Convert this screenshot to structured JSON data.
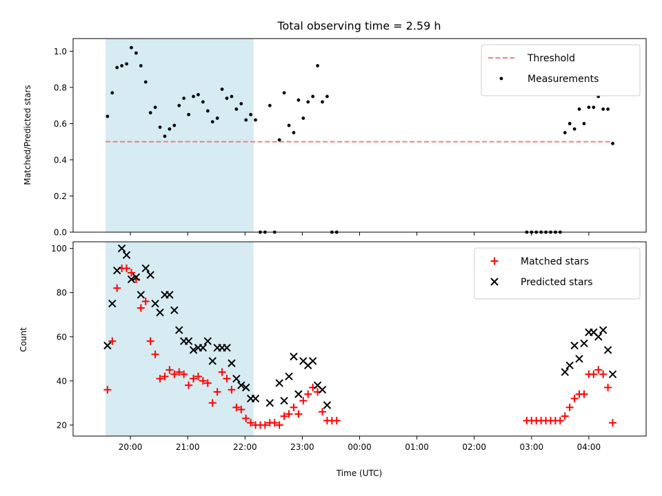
{
  "chart_data": [
    {
      "type": "scatter",
      "title": "Total observing time = 2.59 h",
      "ylabel": "Matched/Predicted stars",
      "xlabel": "",
      "ylim": [
        0,
        1.07
      ],
      "yticks": [
        0.0,
        0.2,
        0.4,
        0.6,
        0.8,
        1.0
      ],
      "ytick_labels": [
        "0.0",
        "0.2",
        "0.4",
        "0.6",
        "0.8",
        "1.0"
      ],
      "grid": false,
      "legend": "top-right",
      "shaded_span": {
        "start": "19:34",
        "end": "22:09",
        "color": "#add8e6"
      },
      "threshold": {
        "name": "Threshold",
        "value": 0.5,
        "start": "19:34",
        "end": "04:25",
        "color": "#f08080"
      },
      "series": [
        {
          "name": "Measurements",
          "color": "#000000",
          "marker": "dot",
          "points": [
            [
              "19:36",
              0.64
            ],
            [
              "19:41",
              0.77
            ],
            [
              "19:46",
              0.91
            ],
            [
              "19:51",
              0.92
            ],
            [
              "19:56",
              0.93
            ],
            [
              "20:01",
              1.02
            ],
            [
              "20:06",
              0.99
            ],
            [
              "20:11",
              0.92
            ],
            [
              "20:16",
              0.83
            ],
            [
              "20:21",
              0.66
            ],
            [
              "20:26",
              0.69
            ],
            [
              "20:31",
              0.58
            ],
            [
              "20:36",
              0.53
            ],
            [
              "20:41",
              0.57
            ],
            [
              "20:46",
              0.59
            ],
            [
              "20:51",
              0.7
            ],
            [
              "20:56",
              0.74
            ],
            [
              "21:01",
              0.65
            ],
            [
              "21:06",
              0.75
            ],
            [
              "21:11",
              0.76
            ],
            [
              "21:16",
              0.72
            ],
            [
              "21:21",
              0.67
            ],
            [
              "21:26",
              0.61
            ],
            [
              "21:31",
              0.63
            ],
            [
              "21:36",
              0.79
            ],
            [
              "21:41",
              0.74
            ],
            [
              "21:46",
              0.75
            ],
            [
              "21:51",
              0.68
            ],
            [
              "21:56",
              0.71
            ],
            [
              "22:01",
              0.62
            ],
            [
              "22:06",
              0.65
            ],
            [
              "22:11",
              0.62
            ],
            [
              "22:16",
              0.0
            ],
            [
              "22:21",
              0.0
            ],
            [
              "22:26",
              0.7
            ],
            [
              "22:31",
              0.0
            ],
            [
              "22:36",
              0.51
            ],
            [
              "22:41",
              0.77
            ],
            [
              "22:46",
              0.59
            ],
            [
              "22:51",
              0.55
            ],
            [
              "22:56",
              0.73
            ],
            [
              "23:01",
              0.63
            ],
            [
              "23:06",
              0.72
            ],
            [
              "23:11",
              0.75
            ],
            [
              "23:16",
              0.92
            ],
            [
              "23:21",
              0.72
            ],
            [
              "23:26",
              0.75
            ],
            [
              "23:31",
              0.0
            ],
            [
              "23:36",
              0.0
            ],
            [
              "02:55",
              0.0
            ],
            [
              "03:00",
              0.0
            ],
            [
              "03:05",
              0.0
            ],
            [
              "03:10",
              0.0
            ],
            [
              "03:15",
              0.0
            ],
            [
              "03:20",
              0.0
            ],
            [
              "03:25",
              0.0
            ],
            [
              "03:30",
              0.0
            ],
            [
              "03:35",
              0.55
            ],
            [
              "03:40",
              0.6
            ],
            [
              "03:45",
              0.57
            ],
            [
              "03:50",
              0.68
            ],
            [
              "03:55",
              0.6
            ],
            [
              "04:00",
              0.69
            ],
            [
              "04:05",
              0.69
            ],
            [
              "04:10",
              0.75
            ],
            [
              "04:15",
              0.68
            ],
            [
              "04:20",
              0.68
            ],
            [
              "04:25",
              0.49
            ]
          ]
        }
      ]
    },
    {
      "type": "scatter",
      "title": "",
      "ylabel": "Count",
      "xlabel": "Time (UTC)",
      "ylim": [
        15,
        103
      ],
      "yticks": [
        20,
        40,
        60,
        80,
        100
      ],
      "ytick_labels": [
        "20",
        "40",
        "60",
        "80",
        "100"
      ],
      "x_range": [
        "19:00",
        "05:00"
      ],
      "xticks": [
        "20:00",
        "21:00",
        "22:00",
        "23:00",
        "00:00",
        "01:00",
        "02:00",
        "03:00",
        "04:00"
      ],
      "xtick_labels": [
        "20:00",
        "21:00",
        "22:00",
        "23:00",
        "00:00",
        "01:00",
        "02:00",
        "03:00",
        "04:00"
      ],
      "grid": false,
      "legend": "top-right",
      "shaded_span": {
        "start": "19:34",
        "end": "22:09",
        "color": "#add8e6"
      },
      "series": [
        {
          "name": "Matched stars",
          "color": "#ff0000",
          "marker": "plus",
          "points": [
            [
              "19:36",
              36
            ],
            [
              "19:41",
              58
            ],
            [
              "19:46",
              82
            ],
            [
              "19:51",
              91
            ],
            [
              "19:56",
              91
            ],
            [
              "20:01",
              89
            ],
            [
              "20:06",
              86
            ],
            [
              "20:11",
              73
            ],
            [
              "20:16",
              76
            ],
            [
              "20:21",
              58
            ],
            [
              "20:26",
              52
            ],
            [
              "20:31",
              41
            ],
            [
              "20:36",
              42
            ],
            [
              "20:41",
              45
            ],
            [
              "20:46",
              43
            ],
            [
              "20:51",
              44
            ],
            [
              "20:56",
              43
            ],
            [
              "21:01",
              38
            ],
            [
              "21:06",
              41
            ],
            [
              "21:11",
              42
            ],
            [
              "21:16",
              40
            ],
            [
              "21:21",
              39
            ],
            [
              "21:26",
              30
            ],
            [
              "21:31",
              35
            ],
            [
              "21:36",
              44
            ],
            [
              "21:41",
              41
            ],
            [
              "21:46",
              36
            ],
            [
              "21:51",
              28
            ],
            [
              "21:56",
              27
            ],
            [
              "22:01",
              23
            ],
            [
              "22:06",
              21
            ],
            [
              "22:11",
              20
            ],
            [
              "22:16",
              20
            ],
            [
              "22:21",
              20
            ],
            [
              "22:26",
              21
            ],
            [
              "22:31",
              21
            ],
            [
              "22:36",
              20
            ],
            [
              "22:41",
              24
            ],
            [
              "22:46",
              25
            ],
            [
              "22:51",
              28
            ],
            [
              "22:56",
              25
            ],
            [
              "23:01",
              31
            ],
            [
              "23:06",
              34
            ],
            [
              "23:11",
              37
            ],
            [
              "23:16",
              35
            ],
            [
              "23:21",
              26
            ],
            [
              "23:26",
              22
            ],
            [
              "23:31",
              22
            ],
            [
              "23:36",
              22
            ],
            [
              "02:55",
              22
            ],
            [
              "03:00",
              22
            ],
            [
              "03:05",
              22
            ],
            [
              "03:10",
              22
            ],
            [
              "03:15",
              22
            ],
            [
              "03:20",
              22
            ],
            [
              "03:25",
              22
            ],
            [
              "03:30",
              22
            ],
            [
              "03:35",
              24
            ],
            [
              "03:40",
              28
            ],
            [
              "03:45",
              32
            ],
            [
              "03:50",
              34
            ],
            [
              "03:55",
              34
            ],
            [
              "04:00",
              43
            ],
            [
              "04:05",
              43
            ],
            [
              "04:10",
              45
            ],
            [
              "04:15",
              43
            ],
            [
              "04:20",
              37
            ],
            [
              "04:25",
              21
            ]
          ]
        },
        {
          "name": "Predicted stars",
          "color": "#000000",
          "marker": "x",
          "points": [
            [
              "19:36",
              56
            ],
            [
              "19:41",
              75
            ],
            [
              "19:46",
              90
            ],
            [
              "19:51",
              100
            ],
            [
              "19:56",
              97
            ],
            [
              "20:01",
              86
            ],
            [
              "20:06",
              87
            ],
            [
              "20:11",
              79
            ],
            [
              "20:16",
              91
            ],
            [
              "20:21",
              88
            ],
            [
              "20:26",
              75
            ],
            [
              "20:31",
              71
            ],
            [
              "20:36",
              79
            ],
            [
              "20:41",
              79
            ],
            [
              "20:46",
              72
            ],
            [
              "20:51",
              63
            ],
            [
              "20:56",
              58
            ],
            [
              "21:01",
              58
            ],
            [
              "21:06",
              54
            ],
            [
              "21:11",
              55
            ],
            [
              "21:16",
              55
            ],
            [
              "21:21",
              58
            ],
            [
              "21:26",
              49
            ],
            [
              "21:31",
              55
            ],
            [
              "21:36",
              55
            ],
            [
              "21:41",
              55
            ],
            [
              "21:46",
              48
            ],
            [
              "21:51",
              41
            ],
            [
              "21:56",
              38
            ],
            [
              "22:01",
              37
            ],
            [
              "22:06",
              32
            ],
            [
              "22:11",
              32
            ],
            [
              "22:26",
              30
            ],
            [
              "22:36",
              39
            ],
            [
              "22:41",
              31
            ],
            [
              "22:46",
              42
            ],
            [
              "22:51",
              51
            ],
            [
              "22:56",
              34
            ],
            [
              "23:01",
              49
            ],
            [
              "23:06",
              47
            ],
            [
              "23:11",
              49
            ],
            [
              "23:16",
              38
            ],
            [
              "23:21",
              36
            ],
            [
              "23:26",
              29
            ],
            [
              "03:35",
              44
            ],
            [
              "03:40",
              47
            ],
            [
              "03:45",
              56
            ],
            [
              "03:50",
              50
            ],
            [
              "03:55",
              57
            ],
            [
              "04:00",
              62
            ],
            [
              "04:05",
              62
            ],
            [
              "04:10",
              60
            ],
            [
              "04:15",
              63
            ],
            [
              "04:20",
              54
            ],
            [
              "04:25",
              43
            ]
          ]
        }
      ]
    }
  ]
}
